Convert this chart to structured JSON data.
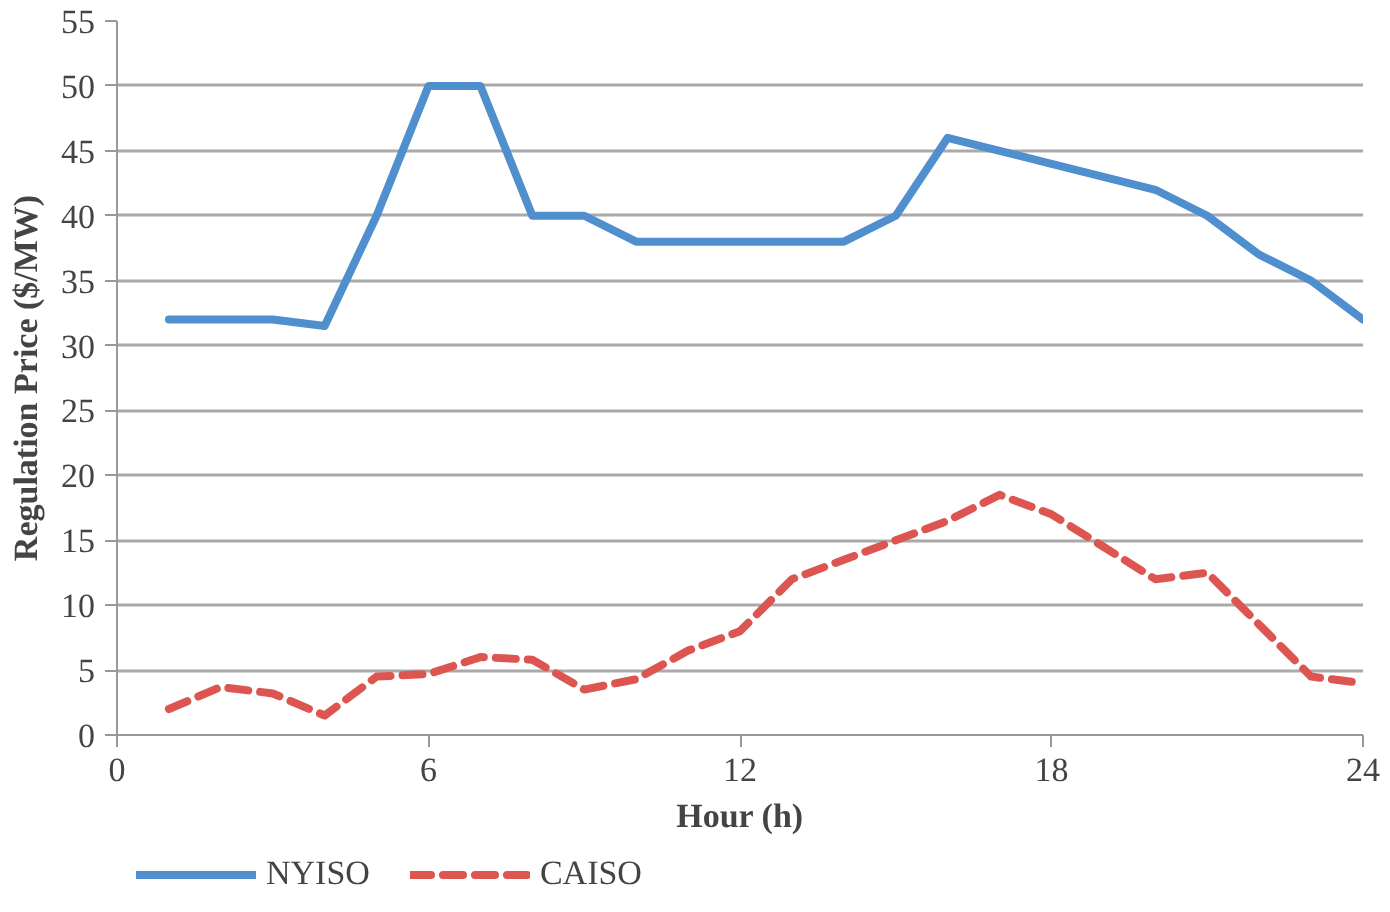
{
  "chart_data": {
    "type": "line",
    "xlabel": "Hour (h)",
    "ylabel": "Regulation Price ($/MW)",
    "x": [
      1,
      2,
      3,
      4,
      5,
      6,
      7,
      8,
      9,
      10,
      11,
      12,
      13,
      14,
      15,
      16,
      17,
      18,
      19,
      20,
      21,
      22,
      23,
      24
    ],
    "series": [
      {
        "name": "NYISO",
        "color": "#4f8fcd",
        "line_style": "solid",
        "values": [
          32,
          32,
          32,
          31.5,
          40,
          50,
          50,
          40,
          40,
          38,
          38,
          38,
          38,
          38,
          40,
          46,
          45,
          44,
          43,
          42,
          40,
          37,
          35,
          32
        ]
      },
      {
        "name": "CAISO",
        "color": "#dd5550",
        "line_style": "dashed",
        "values": [
          2,
          3.7,
          3.2,
          1.5,
          4.5,
          4.7,
          6,
          5.8,
          3.5,
          4.3,
          6.5,
          8,
          12,
          13.5,
          15,
          16.5,
          18.5,
          17,
          14.5,
          12,
          12.5,
          8.5,
          4.5,
          4
        ]
      }
    ],
    "xlim": [
      0,
      24
    ],
    "xticks": [
      0,
      6,
      12,
      18,
      24
    ],
    "ylim": [
      0,
      55
    ],
    "yticks": [
      0,
      5,
      10,
      15,
      20,
      25,
      30,
      35,
      40,
      45,
      50,
      55
    ],
    "grid": "y",
    "legend": "bottom left",
    "marker": "none"
  }
}
